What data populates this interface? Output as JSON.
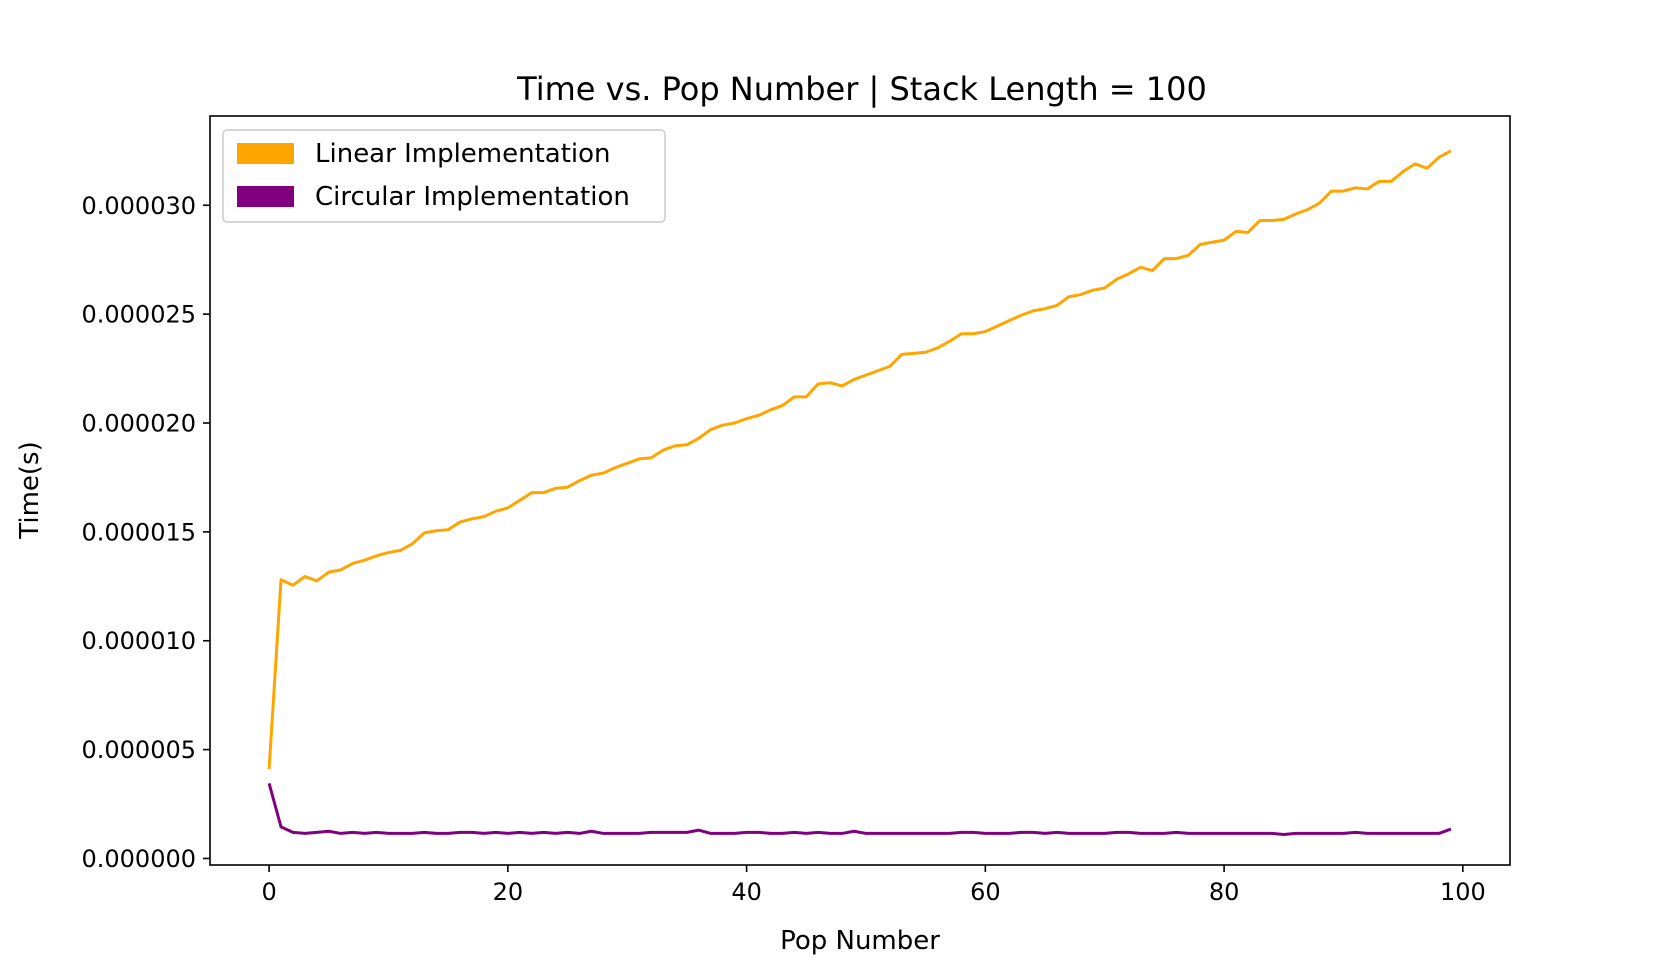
{
  "chart_data": {
    "type": "line",
    "title": "Time vs. Pop Number | Stack Length = 100",
    "xlabel": "Pop Number",
    "ylabel": "Time(s)",
    "xlim": [
      -4.95,
      103.95
    ],
    "ylim": [
      -3e-07,
      3.41e-05
    ],
    "xticks": [
      0,
      20,
      40,
      60,
      80,
      100
    ],
    "xtick_labels": [
      "0",
      "20",
      "40",
      "60",
      "80",
      "100"
    ],
    "yticks": [
      0,
      5e-06,
      1e-05,
      1.5e-05,
      2e-05,
      2.5e-05,
      3e-05
    ],
    "ytick_labels": [
      "0.000000",
      "0.000005",
      "0.000010",
      "0.000015",
      "0.000020",
      "0.000025",
      "0.000030"
    ],
    "grid": false,
    "legend_position": "upper-left",
    "series": [
      {
        "name": "Linear Implementation",
        "color": "#ffa500",
        "x": [
          0,
          1,
          2,
          3,
          4,
          5,
          6,
          7,
          8,
          9,
          10,
          11,
          12,
          13,
          14,
          15,
          16,
          17,
          18,
          19,
          20,
          21,
          22,
          23,
          24,
          25,
          26,
          27,
          28,
          29,
          30,
          31,
          32,
          33,
          34,
          35,
          36,
          37,
          38,
          39,
          40,
          41,
          42,
          43,
          44,
          45,
          46,
          47,
          48,
          49,
          50,
          51,
          52,
          53,
          54,
          55,
          56,
          57,
          58,
          59,
          60,
          61,
          62,
          63,
          64,
          65,
          66,
          67,
          68,
          69,
          70,
          71,
          72,
          73,
          74,
          75,
          76,
          77,
          78,
          79,
          80,
          81,
          82,
          83,
          84,
          85,
          86,
          87,
          88,
          89,
          90,
          91,
          92,
          93,
          94,
          95,
          96,
          97,
          98,
          99
        ],
        "values": [
          4.1e-06,
          1.28e-05,
          1.255e-05,
          1.295e-05,
          1.275e-05,
          1.315e-05,
          1.325e-05,
          1.355e-05,
          1.37e-05,
          1.39e-05,
          1.405e-05,
          1.415e-05,
          1.445e-05,
          1.495e-05,
          1.505e-05,
          1.51e-05,
          1.545e-05,
          1.56e-05,
          1.57e-05,
          1.595e-05,
          1.61e-05,
          1.645e-05,
          1.68e-05,
          1.68e-05,
          1.7e-05,
          1.705e-05,
          1.735e-05,
          1.76e-05,
          1.77e-05,
          1.795e-05,
          1.815e-05,
          1.835e-05,
          1.84e-05,
          1.875e-05,
          1.895e-05,
          1.9e-05,
          1.93e-05,
          1.97e-05,
          1.99e-05,
          2e-05,
          2.02e-05,
          2.035e-05,
          2.06e-05,
          2.08e-05,
          2.12e-05,
          2.12e-05,
          2.18e-05,
          2.185e-05,
          2.17e-05,
          2.2e-05,
          2.22e-05,
          2.24e-05,
          2.26e-05,
          2.315e-05,
          2.32e-05,
          2.325e-05,
          2.345e-05,
          2.375e-05,
          2.41e-05,
          2.41e-05,
          2.42e-05,
          2.445e-05,
          2.47e-05,
          2.495e-05,
          2.515e-05,
          2.525e-05,
          2.54e-05,
          2.58e-05,
          2.59e-05,
          2.61e-05,
          2.62e-05,
          2.66e-05,
          2.685e-05,
          2.715e-05,
          2.7e-05,
          2.755e-05,
          2.755e-05,
          2.77e-05,
          2.82e-05,
          2.83e-05,
          2.84e-05,
          2.88e-05,
          2.875e-05,
          2.93e-05,
          2.93e-05,
          2.935e-05,
          2.96e-05,
          2.98e-05,
          3.01e-05,
          3.065e-05,
          3.065e-05,
          3.08e-05,
          3.075e-05,
          3.11e-05,
          3.11e-05,
          3.155e-05,
          3.19e-05,
          3.17e-05,
          3.22e-05,
          3.25e-05
        ]
      },
      {
        "name": "Circular Implementation",
        "color": "#800080",
        "x": [
          0,
          1,
          2,
          3,
          4,
          5,
          6,
          7,
          8,
          9,
          10,
          11,
          12,
          13,
          14,
          15,
          16,
          17,
          18,
          19,
          20,
          21,
          22,
          23,
          24,
          25,
          26,
          27,
          28,
          29,
          30,
          31,
          32,
          33,
          34,
          35,
          36,
          37,
          38,
          39,
          40,
          41,
          42,
          43,
          44,
          45,
          46,
          47,
          48,
          49,
          50,
          51,
          52,
          53,
          54,
          55,
          56,
          57,
          58,
          59,
          60,
          61,
          62,
          63,
          64,
          65,
          66,
          67,
          68,
          69,
          70,
          71,
          72,
          73,
          74,
          75,
          76,
          77,
          78,
          79,
          80,
          81,
          82,
          83,
          84,
          85,
          86,
          87,
          88,
          89,
          90,
          91,
          92,
          93,
          94,
          95,
          96,
          97,
          98,
          99
        ],
        "values": [
          3.45e-06,
          1.45e-06,
          1.2e-06,
          1.15e-06,
          1.2e-06,
          1.25e-06,
          1.15e-06,
          1.2e-06,
          1.15e-06,
          1.2e-06,
          1.15e-06,
          1.15e-06,
          1.15e-06,
          1.2e-06,
          1.15e-06,
          1.15e-06,
          1.2e-06,
          1.2e-06,
          1.15e-06,
          1.2e-06,
          1.15e-06,
          1.2e-06,
          1.15e-06,
          1.2e-06,
          1.15e-06,
          1.2e-06,
          1.15e-06,
          1.25e-06,
          1.15e-06,
          1.15e-06,
          1.15e-06,
          1.15e-06,
          1.2e-06,
          1.2e-06,
          1.2e-06,
          1.2e-06,
          1.3e-06,
          1.15e-06,
          1.15e-06,
          1.15e-06,
          1.2e-06,
          1.2e-06,
          1.15e-06,
          1.15e-06,
          1.2e-06,
          1.15e-06,
          1.2e-06,
          1.15e-06,
          1.15e-06,
          1.25e-06,
          1.15e-06,
          1.15e-06,
          1.15e-06,
          1.15e-06,
          1.15e-06,
          1.15e-06,
          1.15e-06,
          1.15e-06,
          1.2e-06,
          1.2e-06,
          1.15e-06,
          1.15e-06,
          1.15e-06,
          1.2e-06,
          1.2e-06,
          1.15e-06,
          1.2e-06,
          1.15e-06,
          1.15e-06,
          1.15e-06,
          1.15e-06,
          1.2e-06,
          1.2e-06,
          1.15e-06,
          1.15e-06,
          1.15e-06,
          1.2e-06,
          1.15e-06,
          1.15e-06,
          1.15e-06,
          1.15e-06,
          1.15e-06,
          1.15e-06,
          1.15e-06,
          1.15e-06,
          1.1e-06,
          1.15e-06,
          1.15e-06,
          1.15e-06,
          1.15e-06,
          1.15e-06,
          1.2e-06,
          1.15e-06,
          1.15e-06,
          1.15e-06,
          1.15e-06,
          1.15e-06,
          1.15e-06,
          1.15e-06,
          1.35e-06
        ]
      }
    ]
  }
}
